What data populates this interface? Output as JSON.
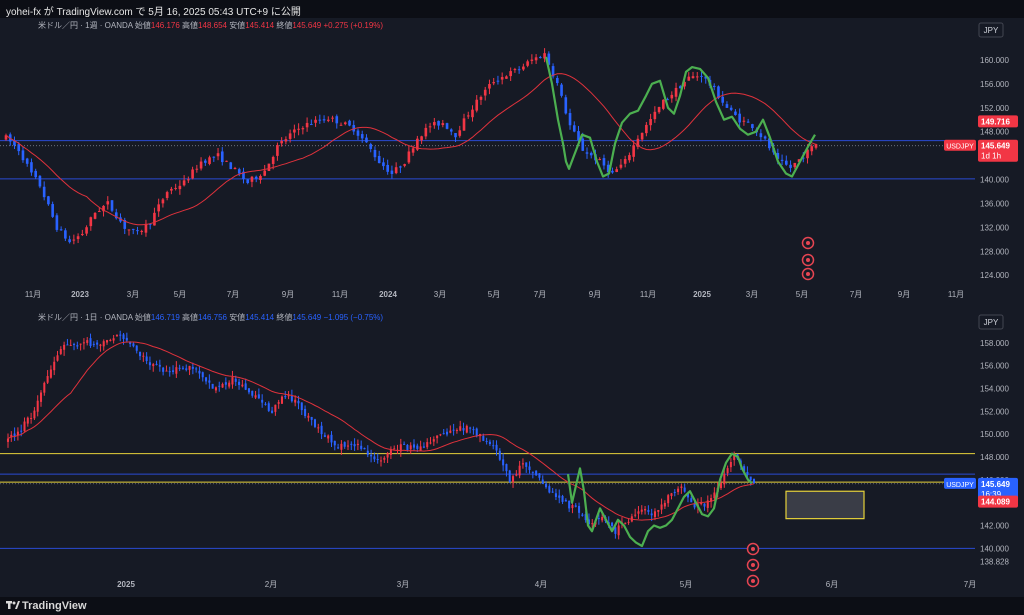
{
  "header": {
    "text": "yohei-fx が TradingView.com で 5月 16, 2025 05:43 UTC+9 に公開"
  },
  "footer": {
    "logo_text": "TradingView"
  },
  "colors": {
    "up": "#f23645",
    "down": "#2962ff",
    "ma": "#e0323c",
    "hline": "#2a4ad4",
    "yline": "#e6d23a",
    "wave": "#4caf50",
    "bg": "#161a25"
  },
  "chart_data": [
    {
      "type": "candlestick",
      "title": "米ドル／円 · 1週 · OANDA",
      "ohlc_labels": {
        "o_label": "始値",
        "o": "146.176",
        "h_label": "高値",
        "h": "148.654",
        "l_label": "安値",
        "l": "145.414",
        "c_label": "終値",
        "c": "145.649",
        "chg": "+0.275 (+0.19%)"
      },
      "currency": "JPY",
      "symbol": "USDJPY",
      "last_price": "145.649",
      "countdown": "1d 1h",
      "price_tag_2": "149.716",
      "ylim": [
        122.7,
        165.0
      ],
      "y_ticks": [
        "124.000",
        "128.000",
        "132.000",
        "136.000",
        "140.000",
        "144.000",
        "148.000",
        "152.000",
        "156.000",
        "160.000"
      ],
      "x_ticks": [
        "11月",
        "2023",
        "3月",
        "5月",
        "7月",
        "9月",
        "11月",
        "2024",
        "3月",
        "5月",
        "7月",
        "9月",
        "11月",
        "2025",
        "3月",
        "5月",
        "7月",
        "9月",
        "11月"
      ],
      "horizontal_lines": [
        146.5,
        140.1
      ],
      "moving_average_period": 20
    },
    {
      "type": "candlestick",
      "title": "米ドル／円 · 1日 · OANDA",
      "ohlc_labels": {
        "o_label": "始値",
        "o": "146.719",
        "h_label": "高値",
        "h": "146.756",
        "l_label": "安値",
        "l": "145.414",
        "c_label": "終値",
        "c": "145.649",
        "chg": "−1.095 (−0.75%)"
      },
      "currency": "JPY",
      "symbol": "USDJPY",
      "last_price": "145.649",
      "countdown": "16:39",
      "price_tag_2": "144.089",
      "ylim": [
        137.4,
        160.0
      ],
      "y_ticks": [
        "138.828",
        "140.000",
        "142.000",
        "144.000",
        "146.000",
        "148.000",
        "150.000",
        "152.000",
        "154.000",
        "156.000",
        "158.000"
      ],
      "x_ticks": [
        "2025",
        "2月",
        "3月",
        "4月",
        "5月",
        "6月",
        "7月"
      ],
      "horizontal_lines": [
        146.5,
        140.0
      ],
      "yellow_lines": [
        148.3,
        145.8
      ],
      "target_box": {
        "price_top": 145.0,
        "price_bottom": 142.6
      },
      "moving_average_period": 20
    }
  ]
}
